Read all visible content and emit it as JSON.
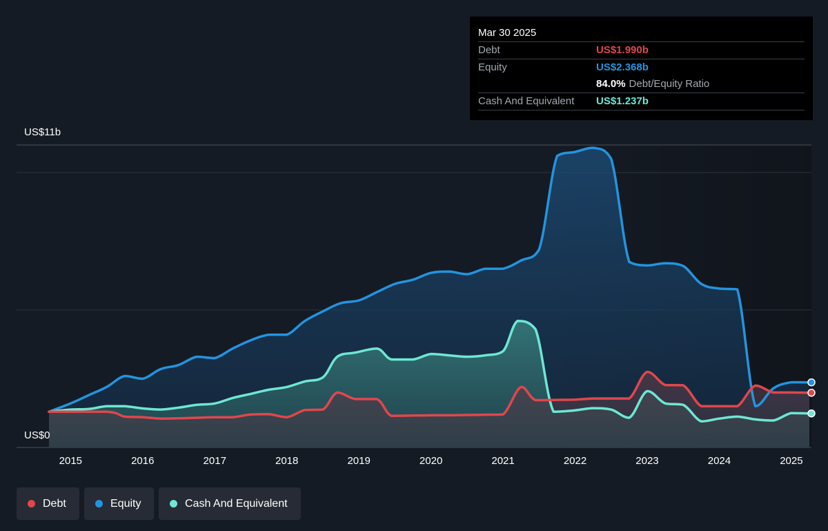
{
  "tooltip": {
    "date": "Mar 30 2025",
    "debt_label": "Debt",
    "debt_value": "US$1.990b",
    "equity_label": "Equity",
    "equity_value": "US$2.368b",
    "ratio_pct": "84.0%",
    "ratio_label": "Debt/Equity Ratio",
    "cash_label": "Cash And Equivalent",
    "cash_value": "US$1.237b"
  },
  "legend": {
    "debt": "Debt",
    "equity": "Equity",
    "cash": "Cash And Equivalent"
  },
  "colors": {
    "debt": "#e0474c",
    "equity": "#2394df",
    "cash": "#6ee7d4",
    "background": "#151b24"
  },
  "chart_data": {
    "type": "area",
    "y_top_label": "US$11b",
    "y_bottom_label": "US$0",
    "ylim": [
      0,
      11
    ],
    "xlim": [
      2014.7,
      2025.25
    ],
    "x_ticks": [
      "2015",
      "2016",
      "2017",
      "2018",
      "2019",
      "2020",
      "2021",
      "2022",
      "2023",
      "2024",
      "2025"
    ],
    "series": [
      {
        "name": "Debt",
        "key": "debt",
        "x": [
          2014.7,
          2015.5,
          2015.75,
          2016.0,
          2016.25,
          2016.5,
          2016.75,
          2017.0,
          2017.25,
          2017.5,
          2017.75,
          2018.0,
          2018.25,
          2018.5,
          2018.7,
          2018.95,
          2019.25,
          2019.45,
          2019.75,
          2020.0,
          2020.25,
          2020.5,
          2020.75,
          2021.0,
          2021.25,
          2021.45,
          2021.75,
          2022.0,
          2022.25,
          2022.5,
          2022.75,
          2023.0,
          2023.25,
          2023.5,
          2023.75,
          2024.0,
          2024.25,
          2024.5,
          2024.75,
          2025.0,
          2025.25
        ],
        "values": [
          1.3,
          1.3,
          1.12,
          1.1,
          1.05,
          1.06,
          1.08,
          1.1,
          1.1,
          1.2,
          1.21,
          1.1,
          1.36,
          1.38,
          2.0,
          1.76,
          1.76,
          1.15,
          1.16,
          1.17,
          1.17,
          1.18,
          1.19,
          1.2,
          2.2,
          1.72,
          1.73,
          1.74,
          1.78,
          1.78,
          1.78,
          2.75,
          2.27,
          2.26,
          1.5,
          1.5,
          1.5,
          2.25,
          2.0,
          2.0,
          1.99
        ]
      },
      {
        "name": "Equity",
        "key": "equity",
        "x": [
          2014.7,
          2015.0,
          2015.25,
          2015.5,
          2015.75,
          2016.0,
          2016.25,
          2016.5,
          2016.75,
          2017.0,
          2017.25,
          2017.5,
          2017.75,
          2018.0,
          2018.25,
          2018.5,
          2018.75,
          2019.0,
          2019.25,
          2019.5,
          2019.75,
          2020.0,
          2020.25,
          2020.5,
          2020.75,
          2021.0,
          2021.25,
          2021.5,
          2021.75,
          2022.0,
          2022.25,
          2022.5,
          2022.75,
          2023.0,
          2023.25,
          2023.5,
          2023.75,
          2024.0,
          2024.25,
          2024.5,
          2024.75,
          2025.0,
          2025.25
        ],
        "values": [
          1.3,
          1.6,
          1.9,
          2.2,
          2.6,
          2.5,
          2.85,
          3.0,
          3.3,
          3.25,
          3.6,
          3.9,
          4.1,
          4.1,
          4.6,
          4.95,
          5.25,
          5.35,
          5.65,
          5.95,
          6.1,
          6.35,
          6.4,
          6.3,
          6.5,
          6.5,
          6.8,
          7.2,
          10.6,
          10.75,
          10.9,
          10.5,
          6.75,
          6.62,
          6.7,
          6.6,
          5.95,
          5.78,
          5.75,
          1.5,
          2.15,
          2.37,
          2.368
        ]
      },
      {
        "name": "Cash And Equivalent",
        "key": "cash",
        "x": [
          2014.7,
          2015.0,
          2015.25,
          2015.5,
          2015.75,
          2016.0,
          2016.25,
          2016.5,
          2016.75,
          2017.0,
          2017.25,
          2017.5,
          2017.75,
          2018.0,
          2018.25,
          2018.5,
          2018.7,
          2018.95,
          2019.25,
          2019.45,
          2019.75,
          2020.0,
          2020.25,
          2020.5,
          2020.75,
          2021.0,
          2021.2,
          2021.45,
          2021.7,
          2022.0,
          2022.25,
          2022.5,
          2022.75,
          2023.0,
          2023.25,
          2023.5,
          2023.75,
          2024.0,
          2024.25,
          2024.5,
          2024.75,
          2025.0,
          2025.25
        ],
        "values": [
          1.3,
          1.38,
          1.4,
          1.5,
          1.5,
          1.42,
          1.38,
          1.45,
          1.55,
          1.6,
          1.8,
          1.95,
          2.1,
          2.2,
          2.4,
          2.55,
          3.3,
          3.45,
          3.6,
          3.2,
          3.2,
          3.4,
          3.35,
          3.3,
          3.35,
          3.5,
          4.6,
          4.3,
          1.3,
          1.35,
          1.43,
          1.38,
          1.08,
          2.05,
          1.6,
          1.55,
          0.95,
          1.05,
          1.12,
          1.02,
          0.98,
          1.25,
          1.237
        ]
      }
    ]
  }
}
